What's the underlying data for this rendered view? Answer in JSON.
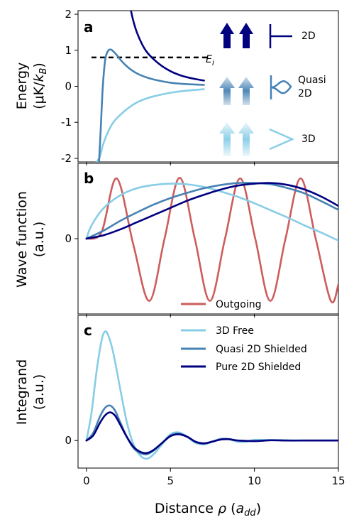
{
  "colors": {
    "free_3d": "#87cde6",
    "quasi_2d": "#4682b4",
    "pure_2d": "#000080",
    "outgoing": "#cd5c5c",
    "ei_line": "#000000"
  },
  "chart_data": [
    {
      "type": "line",
      "panel_label": "a",
      "ylabel_lines": [
        "Energy",
        "(μK/k_B)"
      ],
      "xlim": [
        -0.5,
        15
      ],
      "ylim": [
        -2.1,
        2.1
      ],
      "yticks": [
        -2,
        -1,
        0,
        1,
        2
      ],
      "ytick_labels": [
        "-2",
        "-1",
        "0",
        "1",
        "2"
      ],
      "ei_line": {
        "y": 0.8,
        "x_start": 0.3,
        "x_end": 7.2,
        "label": "E_i"
      },
      "series": [
        {
          "key": "free_3d",
          "x": [
            0.6,
            0.8,
            1.0,
            1.3,
            1.6,
            2.0,
            2.5,
            3.0,
            3.5,
            4.0,
            5.0,
            6.0,
            7.0
          ],
          "y": [
            -2.1,
            -1.95,
            -1.6,
            -1.25,
            -1.0,
            -0.8,
            -0.6,
            -0.45,
            -0.35,
            -0.28,
            -0.18,
            -0.12,
            -0.08
          ]
        },
        {
          "key": "quasi_2d",
          "x": [
            0.75,
            0.85,
            0.95,
            1.05,
            1.15,
            1.3,
            1.45,
            1.6,
            1.8,
            2.0,
            2.3,
            2.6,
            3.0,
            3.5,
            4.0,
            5.0,
            6.0,
            7.0
          ],
          "y": [
            -2.1,
            -1.2,
            -0.2,
            0.45,
            0.82,
            0.99,
            1.02,
            0.97,
            0.87,
            0.75,
            0.6,
            0.48,
            0.36,
            0.26,
            0.19,
            0.1,
            0.06,
            0.04
          ]
        },
        {
          "key": "pure_2d",
          "x": [
            2.65,
            2.8,
            3.0,
            3.3,
            3.6,
            4.0,
            4.5,
            5.0,
            5.5,
            6.0,
            6.5,
            7.0
          ],
          "y": [
            2.1,
            1.8,
            1.5,
            1.18,
            0.95,
            0.75,
            0.56,
            0.42,
            0.32,
            0.25,
            0.2,
            0.16
          ]
        }
      ],
      "annotations": [
        {
          "key": "pure_2d",
          "label": "2D"
        },
        {
          "key": "quasi_2d",
          "label_lines": [
            "Quasi",
            "2D"
          ]
        },
        {
          "key": "free_3d",
          "label": "3D"
        }
      ]
    },
    {
      "type": "line",
      "panel_label": "b",
      "ylabel_lines": [
        "Wave function",
        "(a.u.)"
      ],
      "xlim": [
        -0.5,
        15
      ],
      "ylim": [
        -1.15,
        1.15
      ],
      "yticks": [
        0
      ],
      "ytick_labels": [
        "0"
      ],
      "series": [
        {
          "key": "outgoing",
          "name": "Outgoing",
          "x": [
            0,
            0.9,
            1.8,
            2.8,
            3.75,
            4.65,
            5.55,
            6.45,
            7.35,
            8.25,
            9.15,
            10.05,
            10.95,
            11.85,
            12.75,
            13.65,
            14.55,
            15.0
          ],
          "y": [
            0,
            0.1,
            0.92,
            -0.1,
            -0.95,
            0,
            0.93,
            0,
            -0.95,
            0,
            0.92,
            0,
            -0.95,
            0,
            0.92,
            0,
            -0.95,
            -0.7
          ]
        },
        {
          "key": "free_3d",
          "name": "3D Free",
          "x": [
            0,
            0.3,
            1.0,
            2.0,
            3.0,
            4.0,
            5.0,
            6.0,
            7.0,
            8.0,
            9.0,
            10.0,
            11.0,
            12.0,
            13.0,
            14.0,
            15.0
          ],
          "y": [
            0,
            0.2,
            0.46,
            0.66,
            0.77,
            0.82,
            0.84,
            0.83,
            0.79,
            0.72,
            0.64,
            0.54,
            0.43,
            0.32,
            0.2,
            0.09,
            -0.03
          ]
        },
        {
          "key": "quasi_2d",
          "name": "Quasi 2D Shielded",
          "x": [
            0,
            1.0,
            2.0,
            3.0,
            4.0,
            5.0,
            6.0,
            7.0,
            8.0,
            9.0,
            10.0,
            11.0,
            12.0,
            13.0,
            14.0,
            15.0
          ],
          "y": [
            0,
            0.12,
            0.27,
            0.4,
            0.52,
            0.62,
            0.7,
            0.77,
            0.82,
            0.85,
            0.85,
            0.83,
            0.77,
            0.69,
            0.57,
            0.44
          ]
        },
        {
          "key": "pure_2d",
          "name": "Pure 2D Shielded",
          "x": [
            0,
            1.0,
            2.0,
            3.0,
            4.0,
            5.0,
            6.0,
            7.0,
            8.0,
            9.0,
            10.0,
            11.0,
            12.0,
            13.0,
            14.0,
            15.0
          ],
          "y": [
            0,
            0.05,
            0.14,
            0.25,
            0.36,
            0.47,
            0.58,
            0.67,
            0.75,
            0.81,
            0.84,
            0.85,
            0.82,
            0.75,
            0.64,
            0.5
          ]
        }
      ]
    },
    {
      "type": "line",
      "panel_label": "c",
      "ylabel_lines": [
        "Integrand",
        "(a.u.)"
      ],
      "xlim": [
        -0.5,
        15
      ],
      "ylim": [
        -0.22,
        1.0
      ],
      "yticks": [
        0
      ],
      "ytick_labels": [
        "0"
      ],
      "xticks": [
        0,
        5,
        10,
        15
      ],
      "xtick_labels": [
        "0",
        "5",
        "10",
        "15"
      ],
      "xlabel": "Distance ρ (a_dd)",
      "series": [
        {
          "key": "free_3d",
          "x": [
            0,
            0.3,
            0.6,
            0.9,
            1.1,
            1.3,
            1.6,
            2.0,
            2.4,
            2.8,
            3.2,
            3.6,
            4.0,
            4.5,
            5.0,
            5.5,
            6.0,
            6.5,
            7.0,
            7.5,
            8.0,
            8.5,
            9.0,
            9.5,
            10.0,
            11.0,
            12.0,
            13.0,
            14.0,
            15.0
          ],
          "y": [
            0,
            0.22,
            0.55,
            0.8,
            0.87,
            0.84,
            0.7,
            0.42,
            0.15,
            -0.03,
            -0.12,
            -0.145,
            -0.11,
            -0.03,
            0.05,
            0.065,
            0.03,
            -0.02,
            -0.03,
            -0.01,
            0.015,
            0.01,
            -0.01,
            -0.01,
            0.005,
            0.004,
            0.002,
            0.0,
            0.0,
            0.0
          ]
        },
        {
          "key": "quasi_2d",
          "name": "Quasi 2D Shielded",
          "x": [
            0,
            0.4,
            0.8,
            1.1,
            1.4,
            1.7,
            2.0,
            2.4,
            2.8,
            3.2,
            3.6,
            4.0,
            4.5,
            5.0,
            5.5,
            6.0,
            6.5,
            7.0,
            7.5,
            8.0,
            8.5,
            9.0,
            10.0,
            11.0,
            12.0,
            13.0,
            14.0,
            15.0
          ],
          "y": [
            0,
            0.06,
            0.19,
            0.26,
            0.28,
            0.24,
            0.15,
            0.03,
            -0.06,
            -0.1,
            -0.11,
            -0.08,
            -0.02,
            0.04,
            0.055,
            0.03,
            -0.01,
            -0.025,
            -0.01,
            0.01,
            0.012,
            0.0,
            -0.005,
            0.003,
            0.0,
            0.0,
            0.0,
            0.0
          ]
        },
        {
          "key": "pure_2d",
          "name": "Pure 2D Shielded",
          "x": [
            0,
            0.4,
            0.8,
            1.1,
            1.4,
            1.7,
            2.0,
            2.4,
            2.8,
            3.2,
            3.6,
            4.0,
            4.5,
            5.0,
            5.5,
            6.0,
            6.5,
            7.0,
            7.5,
            8.0,
            8.5,
            9.0,
            10.0,
            11.0,
            12.0,
            13.0,
            14.0,
            15.0
          ],
          "y": [
            0,
            0.04,
            0.14,
            0.2,
            0.225,
            0.2,
            0.13,
            0.03,
            -0.05,
            -0.09,
            -0.1,
            -0.075,
            -0.02,
            0.035,
            0.05,
            0.03,
            -0.01,
            -0.022,
            -0.008,
            0.008,
            0.01,
            0.0,
            -0.004,
            0.002,
            0.0,
            0.0,
            0.0,
            0.0
          ]
        }
      ]
    }
  ]
}
